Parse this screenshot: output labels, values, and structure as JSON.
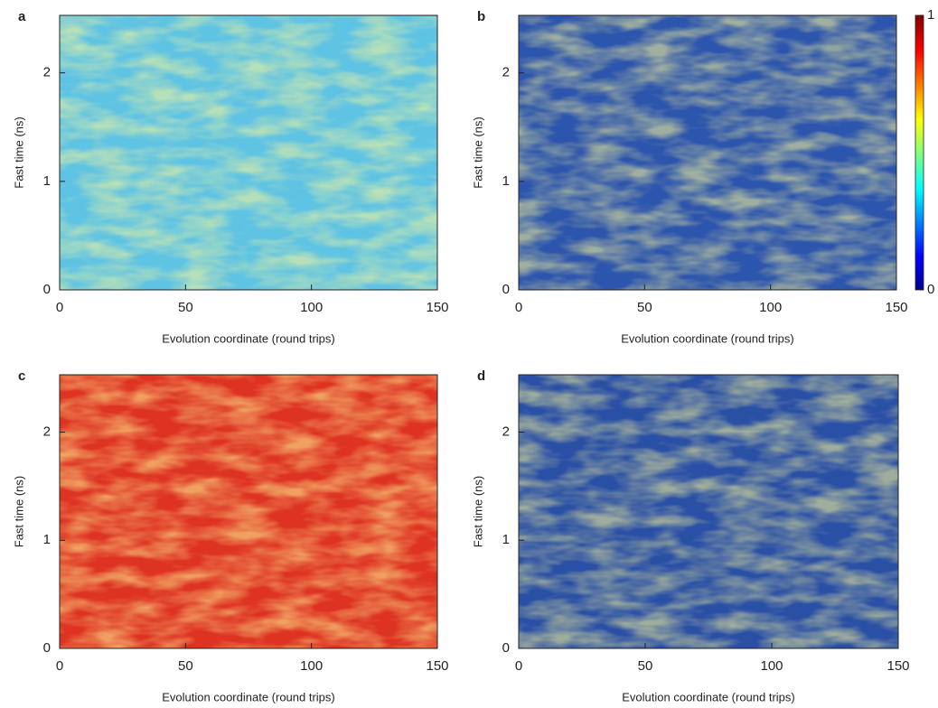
{
  "chart_data": [
    {
      "type": "heatmap",
      "panel_label": "a",
      "xlabel": "Evolution coordinate (round trips)",
      "ylabel": "Fast time (ns)",
      "xlim": [
        0,
        150
      ],
      "xticks": [
        0,
        50,
        100,
        150
      ],
      "ylim": [
        0,
        2.53
      ],
      "yticks": [
        0,
        1,
        2
      ],
      "color": "#5fc3e4"
    },
    {
      "type": "heatmap",
      "panel_label": "b",
      "xlabel": "Evolution coordinate (round trips)",
      "ylabel": "Fast time (ns)",
      "xlim": [
        0,
        150
      ],
      "xticks": [
        0,
        50,
        100,
        150
      ],
      "ylim": [
        0,
        2.53
      ],
      "yticks": [
        0,
        1,
        2
      ],
      "color": "#2c55ad",
      "colorbar": {
        "clim": [
          0,
          1
        ],
        "cticks": [
          0,
          1
        ]
      }
    },
    {
      "type": "heatmap",
      "panel_label": "c",
      "xlabel": "Evolution coordinate (round trips)",
      "ylabel": "Fast time (ns)",
      "xlim": [
        0,
        150
      ],
      "xticks": [
        0,
        50,
        100,
        150
      ],
      "ylim": [
        0,
        2.53
      ],
      "yticks": [
        0,
        1,
        2
      ],
      "color": "#de3323"
    },
    {
      "type": "heatmap",
      "panel_label": "d",
      "xlabel": "Evolution coordinate (round trips)",
      "ylabel": "Fast time (ns)",
      "xlim": [
        0,
        150
      ],
      "xticks": [
        0,
        50,
        100,
        150
      ],
      "ylim": [
        0,
        2.53
      ],
      "yticks": [
        0,
        1,
        2
      ],
      "color": "#2a50a6"
    }
  ]
}
